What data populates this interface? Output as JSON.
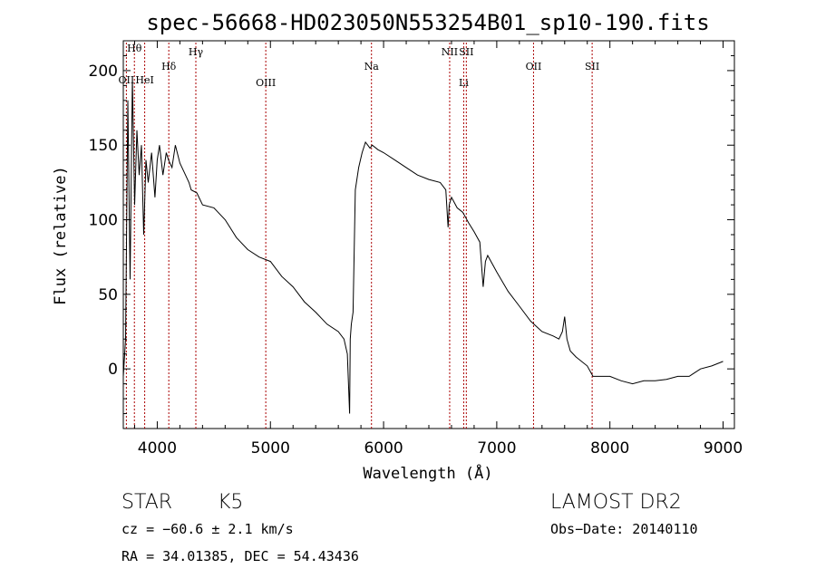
{
  "chart_data": {
    "type": "line",
    "title": "spec-56668-HD023050N553254B01_sp10-190.fits",
    "xlabel": "Wavelength (Å)",
    "ylabel": "Flux (relative)",
    "xlim": [
      3700,
      9100
    ],
    "ylim": [
      -40,
      220
    ],
    "x_ticks": [
      4000,
      5000,
      6000,
      7000,
      8000,
      9000
    ],
    "y_ticks": [
      0,
      50,
      100,
      150,
      200
    ],
    "grid": false,
    "series": [
      {
        "x": [
          3700,
          3720,
          3740,
          3760,
          3780,
          3800,
          3820,
          3840,
          3860,
          3880,
          3900,
          3920,
          3950,
          3980,
          4000,
          4020,
          4050,
          4080,
          4100,
          4130,
          4160,
          4200,
          4250,
          4280,
          4300,
          4350,
          4400,
          4500,
          4600,
          4700,
          4800,
          4900,
          5000,
          5100,
          5200,
          5300,
          5400,
          5500,
          5600,
          5650,
          5680,
          5700,
          5705,
          5715,
          5730,
          5750,
          5780,
          5810,
          5840,
          5860,
          5880,
          5900,
          5950,
          6000,
          6100,
          6200,
          6300,
          6400,
          6500,
          6550,
          6570,
          6580,
          6600,
          6650,
          6700,
          6750,
          6800,
          6850,
          6880,
          6900,
          6920,
          7000,
          7100,
          7200,
          7300,
          7400,
          7500,
          7550,
          7580,
          7600,
          7620,
          7650,
          7700,
          7800,
          7850,
          7900,
          8000,
          8100,
          8200,
          8300,
          8400,
          8500,
          8600,
          8700,
          8800,
          8900,
          9000
        ],
        "y": [
          -5,
          20,
          180,
          60,
          195,
          110,
          160,
          130,
          150,
          90,
          140,
          125,
          145,
          115,
          140,
          150,
          130,
          145,
          140,
          135,
          150,
          138,
          130,
          125,
          120,
          118,
          110,
          108,
          100,
          88,
          80,
          75,
          72,
          62,
          55,
          45,
          38,
          30,
          25,
          20,
          10,
          -30,
          20,
          30,
          38,
          120,
          135,
          145,
          152,
          150,
          148,
          150,
          147,
          145,
          140,
          135,
          130,
          127,
          125,
          120,
          95,
          110,
          115,
          108,
          105,
          98,
          92,
          85,
          55,
          72,
          76,
          65,
          52,
          42,
          32,
          25,
          22,
          20,
          25,
          35,
          20,
          12,
          8,
          2,
          -5,
          -5,
          -5,
          -8,
          -10,
          -8,
          -8,
          -7,
          -5,
          -5,
          0,
          2,
          5
        ]
      }
    ],
    "line_markers": [
      {
        "label": "Hθ",
        "x": 3798
      },
      {
        "label": "OII",
        "x": 3727
      },
      {
        "label": "HeI",
        "x": 3889
      },
      {
        "label": "Hδ",
        "x": 4102
      },
      {
        "label": "Hγ",
        "x": 4341
      },
      {
        "label": "OIII",
        "x": 4959
      },
      {
        "label": "Na",
        "x": 5893
      },
      {
        "label": "NII",
        "x": 6584
      },
      {
        "label": "Li",
        "x": 6708
      },
      {
        "label": "SII",
        "x": 6731
      },
      {
        "label": "OII",
        "x": 7325
      },
      {
        "label": "SII",
        "x": 7843
      }
    ]
  },
  "info": {
    "object_class": "STAR",
    "subclass": "K5",
    "survey": "LAMOST DR2",
    "cz": "cz = −60.6 ± 2.1 km/s",
    "obs_date": "Obs−Date: 20140110",
    "coords": "RA =  34.01385, DEC =  54.43436"
  },
  "colors": {
    "spectrum": "#000000",
    "markers": "#aa0000",
    "axes": "#000000",
    "background": "#ffffff"
  }
}
